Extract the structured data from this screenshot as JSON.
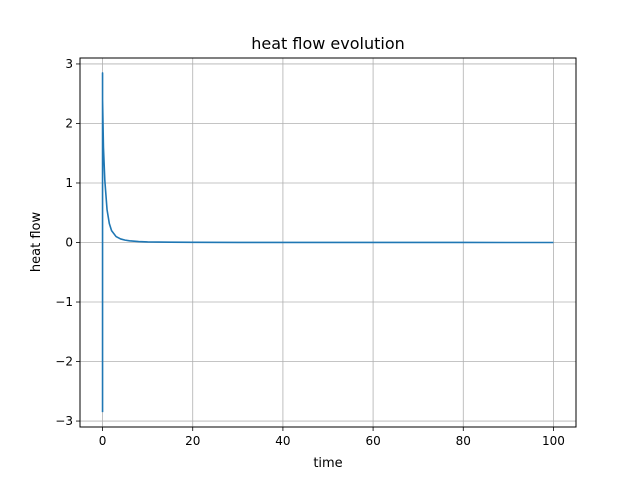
{
  "chart_data": {
    "type": "line",
    "title": "heat flow evolution",
    "xlabel": "time",
    "ylabel": "heat flow",
    "xlim": [
      -5,
      105
    ],
    "ylim": [
      -3.1,
      3.1
    ],
    "xticks": [
      0,
      20,
      40,
      60,
      80,
      100
    ],
    "yticks": [
      -3,
      -2,
      -1,
      0,
      1,
      2,
      3
    ],
    "grid": true,
    "series": [
      {
        "color": "#1f77b4",
        "x": [
          0,
          0,
          0,
          0.2,
          0.5,
          1,
          1.5,
          2,
          3,
          4,
          5,
          6,
          8,
          10,
          15,
          20,
          30,
          40,
          50,
          60,
          70,
          80,
          90,
          100
        ],
        "y": [
          -2.85,
          2.85,
          2.4,
          1.6,
          1.05,
          0.55,
          0.32,
          0.2,
          0.1,
          0.06,
          0.04,
          0.028,
          0.016,
          0.01,
          0.005,
          0.003,
          0.0015,
          0.001,
          0.0007,
          0.0005,
          0.0004,
          0.0003,
          0.0002,
          0.0001
        ]
      }
    ]
  }
}
